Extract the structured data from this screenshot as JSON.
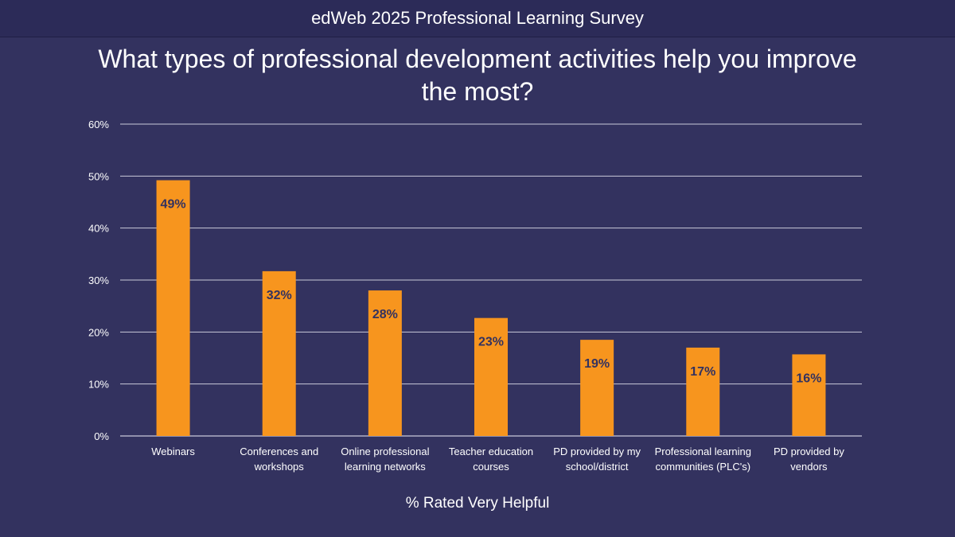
{
  "header": {
    "banner": "edWeb 2025 Professional Learning Survey"
  },
  "colors": {
    "background": "#33325f",
    "bar": "#f7951e",
    "grid": "#c9c9d9",
    "data_label": "#33325f"
  },
  "chart_data": {
    "type": "bar",
    "title": "What types of professional development activities help you improve the most?",
    "xlabel": "% Rated Very Helpful",
    "ylabel": "",
    "ylim": [
      0,
      60
    ],
    "yticks": [
      {
        "value": 0,
        "label": "0%"
      },
      {
        "value": 10,
        "label": "10%"
      },
      {
        "value": 20,
        "label": "20%"
      },
      {
        "value": 30,
        "label": "30%"
      },
      {
        "value": 40,
        "label": "40%"
      },
      {
        "value": 50,
        "label": "50%"
      },
      {
        "value": 60,
        "label": "60%"
      }
    ],
    "grid": true,
    "legend": "none",
    "categories": [
      [
        "Webinars"
      ],
      [
        "Conferences and",
        "workshops"
      ],
      [
        "Online professional",
        "learning networks"
      ],
      [
        "Teacher education",
        "courses"
      ],
      [
        "PD provided by my",
        "school/district"
      ],
      [
        "Professional learning",
        "communities (PLC's)"
      ],
      [
        "PD provided by",
        "vendors"
      ]
    ],
    "values": [
      49.2,
      31.7,
      28.0,
      22.7,
      18.5,
      17.0,
      15.7
    ],
    "data_labels": [
      "49%",
      "32%",
      "28%",
      "23%",
      "19%",
      "17%",
      "16%"
    ]
  }
}
